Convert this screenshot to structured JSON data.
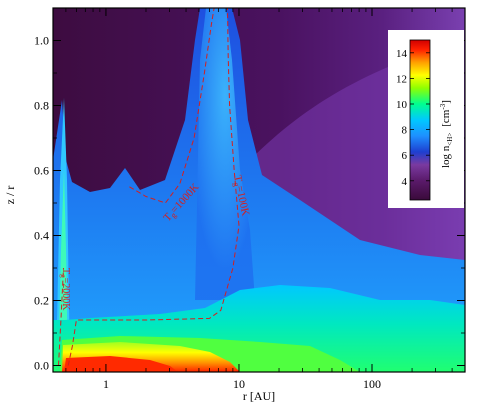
{
  "chart_data": {
    "type": "heatmap",
    "xlabel": "r [AU]",
    "ylabel": "z / r",
    "xscale": "log",
    "xlim": [
      0.4,
      500
    ],
    "ylim": [
      -0.02,
      1.1
    ],
    "x_ticks": [
      {
        "value": 1,
        "label": "1"
      },
      {
        "value": 10,
        "label": "10"
      },
      {
        "value": 100,
        "label": "100"
      }
    ],
    "y_ticks": [
      {
        "value": 0.0,
        "label": "0.0"
      },
      {
        "value": 0.2,
        "label": "0.2"
      },
      {
        "value": 0.4,
        "label": "0.4"
      },
      {
        "value": 0.6,
        "label": "0.6"
      },
      {
        "value": 0.8,
        "label": "0.8"
      },
      {
        "value": 1.0,
        "label": "1.0"
      }
    ],
    "colorbar": {
      "label_main": "log n",
      "label_sub": "<H>",
      "label_unit": "[cm",
      "label_unit_exp": "-3",
      "label_unit_close": "]",
      "range": [
        2.5,
        15
      ],
      "ticks": [
        4,
        6,
        8,
        10,
        12,
        14
      ],
      "placement": "upper-right, inside plot",
      "colormap_stops": [
        "#3a0a3a",
        "#5a1a6a",
        "#7a3aa0",
        "#1e3fd0",
        "#1e90ff",
        "#00c8ff",
        "#00ff90",
        "#90ff00",
        "#ffff00",
        "#ffa000",
        "#ff2000",
        "#d00000"
      ]
    },
    "contours": [
      {
        "label": "T",
        "label_sub": "g",
        "label_rest": "=100K",
        "color": "#d22020",
        "style": "dashed",
        "points": [
          [
            0.52,
            0.0
          ],
          [
            0.56,
            0.06
          ],
          [
            0.6,
            0.14
          ],
          [
            2,
            0.14
          ],
          [
            6,
            0.145
          ],
          [
            7.3,
            0.17
          ],
          [
            9,
            0.3
          ],
          [
            10,
            0.43
          ],
          [
            9.2,
            0.6
          ],
          [
            8.5,
            0.8
          ],
          [
            8.3,
            0.95
          ],
          [
            8.2,
            1.1
          ]
        ]
      },
      {
        "label": "T",
        "label_sub": "g",
        "label_rest": "=1000K",
        "color": "#d22020",
        "style": "dashed",
        "points": [
          [
            1.5,
            0.55
          ],
          [
            2,
            0.52
          ],
          [
            2.8,
            0.5
          ],
          [
            3.6,
            0.56
          ],
          [
            4.6,
            0.7
          ],
          [
            5.5,
            0.9
          ],
          [
            6.2,
            1.05
          ],
          [
            6.5,
            1.1
          ]
        ]
      },
      {
        "label": "T",
        "label_sub": "g",
        "label_rest": "=2000K",
        "color": "#d22020",
        "style": "dashed",
        "points": [
          [
            0.44,
            0.0
          ],
          [
            0.46,
            0.15
          ],
          [
            0.48,
            0.3
          ]
        ]
      }
    ],
    "features": [
      {
        "name": "inner-rim-spike",
        "x_peak": 0.55,
        "z_peak": 0.82
      },
      {
        "name": "puffed-region",
        "x_peak": 7.5,
        "z_peak": 1.1
      },
      {
        "name": "midplane-dense-region",
        "x_range": [
          0.55,
          5
        ],
        "z_range": [
          0.0,
          0.08
        ],
        "log_n_max": 14.5
      }
    ]
  }
}
